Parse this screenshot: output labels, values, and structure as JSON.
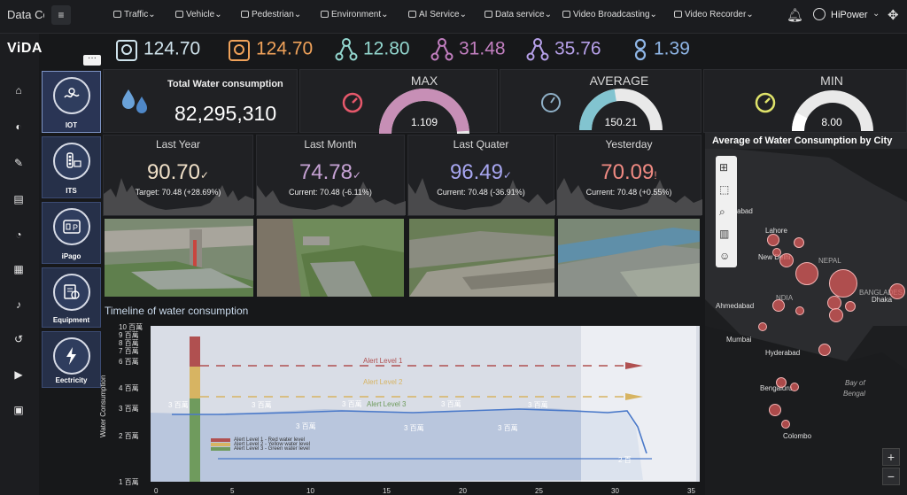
{
  "topbar": {
    "brand": "Data Collecti",
    "menu": [
      "Traffic",
      "Vehicle",
      "Pedestrian",
      "Environment",
      "AI Service",
      "Data service",
      "Video Broadcasting",
      "Video Recorder"
    ],
    "user": "HiPower"
  },
  "brand": "ViDA",
  "more": "···",
  "categories": [
    "IOT",
    "ITS",
    "iPago",
    "Equipment",
    "Eectricity"
  ],
  "metrics": [
    {
      "v": "124.70",
      "color": "#cfe3ec"
    },
    {
      "v": "124.70",
      "color": "#f0a25a"
    },
    {
      "v": "12.80",
      "color": "#93d7cf"
    },
    {
      "v": "31.48",
      "color": "#c27fc0"
    },
    {
      "v": "35.76",
      "color": "#b6a0e9"
    },
    {
      "v": "1.39",
      "color": "#8fb6e7"
    }
  ],
  "total": {
    "label": "Total Water consumption",
    "value": "82,295,310"
  },
  "gauges": [
    {
      "title": "MAX",
      "value": "1.109",
      "fill": "#c78fb6",
      "level": 0.98,
      "icon_color": "#e6586b"
    },
    {
      "title": "AVERAGE",
      "value": "150.21",
      "fill": "#82c4d0",
      "level": 0.45,
      "icon_color": "#8fb0c7"
    },
    {
      "title": "MIN",
      "value": "8.00",
      "fill": "#ffffff",
      "level": 0.15,
      "icon_color": "#dfe36a"
    }
  ],
  "kpis": [
    {
      "title": "Last Year",
      "value": "90.70",
      "color": "#f0e0c8",
      "sub": "Target: 70.48 (+28.69%)",
      "mark": "✓",
      "titlecolor": "#f1d8b7"
    },
    {
      "title": "Last Month",
      "value": "74.78",
      "color": "#c6a2d4",
      "sub": "Current: 70.48 (-6.11%)",
      "mark": "✓",
      "titlecolor": "#e0e6f5"
    },
    {
      "title": "Last Quater",
      "value": "96.49",
      "color": "#a7a6f0",
      "sub": "Current: 70.48 (-36.91%)",
      "mark": "✓",
      "titlecolor": "#d7f2d8"
    },
    {
      "title": "Yesterday",
      "value": "70.09",
      "color": "#ef8a82",
      "sub": "Current: 70.48 (+0.55%)",
      "mark": "!",
      "titlecolor": "#f3e9b0"
    }
  ],
  "timeline": {
    "title": "Timeline of water consumption",
    "ylabel": "Water Consumption",
    "yticks": [
      "10 百萬",
      "9 百萬",
      "8 百萬",
      "7 百萬",
      "6 百萬",
      "4 百萬",
      "3 百萬",
      "2 百萬",
      "1 百萬"
    ],
    "xticks": [
      "0",
      "5",
      "10",
      "15",
      "20",
      "25",
      "30",
      "35"
    ],
    "alerts": [
      "Alert Level 1",
      "Alert Level 2",
      "Alert Level 3"
    ],
    "legend": [
      "Alert Level 1 - Red water level",
      "Alert Level 2 - Yellow water level",
      "Alert Level 3 - Green water level"
    ],
    "pt": "3 百萬",
    "pt2": "2 百"
  },
  "map": {
    "title": "Average of Water Consumption by City",
    "labels": [
      "abad",
      "Lahore",
      "New Delhi",
      "NEPAL",
      "NDIA",
      "BANGLADES",
      "Dhaka",
      "Ahmedabad",
      "Mumbai",
      "Hyderabad",
      "Bay of",
      "Bengal",
      "Bengaluru",
      "Colombo"
    ]
  }
}
